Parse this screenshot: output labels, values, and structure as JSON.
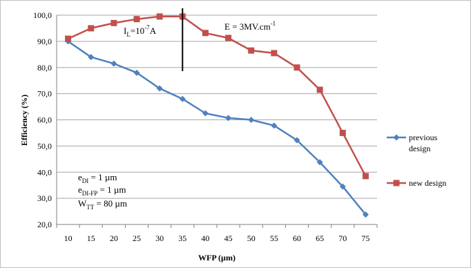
{
  "chart_data": {
    "type": "line",
    "xlabel": "WFP (µm)",
    "ylabel": "Efficiency (%)",
    "x": [
      10,
      15,
      20,
      25,
      30,
      35,
      40,
      45,
      50,
      55,
      60,
      65,
      70,
      75
    ],
    "ylim": [
      20,
      100
    ],
    "yticks": [
      "20,0",
      "30,0",
      "40,0",
      "50,0",
      "60,0",
      "70,0",
      "80,0",
      "90,0",
      "100,0"
    ],
    "grid": "horizontal",
    "legend_position": "right",
    "series": [
      {
        "name": "previous design",
        "name_lines": [
          "previous",
          "design"
        ],
        "color": "#4f81bd",
        "marker": "diamond",
        "values": [
          90.0,
          84.0,
          81.5,
          78.0,
          72.0,
          68.0,
          62.5,
          60.7,
          60.0,
          57.8,
          52.2,
          43.8,
          34.5,
          23.8
        ]
      },
      {
        "name": "new design",
        "color": "#c0504d",
        "marker": "square",
        "values": [
          91.0,
          95.0,
          97.0,
          98.5,
          99.5,
          99.5,
          93.2,
          91.3,
          86.5,
          85.5,
          80.0,
          71.5,
          55.0,
          38.5
        ]
      }
    ],
    "annotations": {
      "il": {
        "main": "I",
        "sub": "L",
        "mid": "=10",
        "sup": "-7",
        "tail": "A"
      },
      "efield": {
        "text": "E = 3MV.cm",
        "sup": "-1"
      },
      "edi": {
        "main": "e",
        "sub": "DI",
        "tail": " = 1 µm"
      },
      "edifp": {
        "main": "e",
        "sub": "DI-FP",
        "tail": " = 1 µm"
      },
      "wtt": {
        "main": "W",
        "sub": "TT",
        "tail": " = 80 µm"
      },
      "marker_line_x": 35
    }
  }
}
